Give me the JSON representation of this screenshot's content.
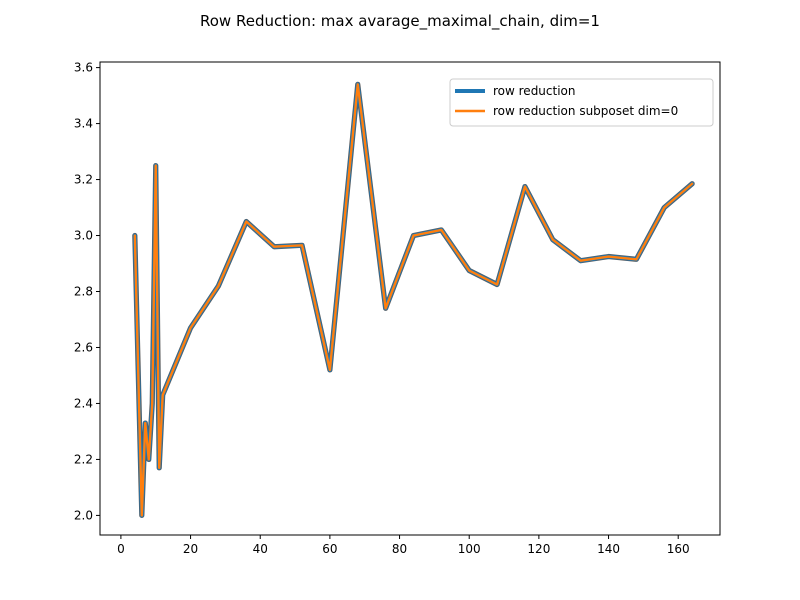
{
  "chart_data": {
    "type": "line",
    "title": "Row Reduction: max avarage_maximal_chain, dim=1",
    "xlabel": "",
    "ylabel": "",
    "xlim": [
      -6,
      172
    ],
    "ylim": [
      1.93,
      3.62
    ],
    "x_ticks": [
      0,
      20,
      40,
      60,
      80,
      100,
      120,
      140,
      160
    ],
    "y_ticks": [
      2.0,
      2.2,
      2.4,
      2.6,
      2.8,
      3.0,
      3.2,
      3.4,
      3.6
    ],
    "x_tick_labels": [
      "0",
      "20",
      "40",
      "60",
      "80",
      "100",
      "120",
      "140",
      "160"
    ],
    "y_tick_labels": [
      "2.0",
      "2.2",
      "2.4",
      "2.6",
      "2.8",
      "3.0",
      "3.2",
      "3.4",
      "3.6"
    ],
    "legend_position": "top-right",
    "grid": false,
    "series": [
      {
        "name": "row reduction",
        "color": "#1f77b4",
        "x": [
          4,
          6,
          7,
          8,
          9,
          10,
          11,
          12,
          20,
          28,
          36,
          44,
          52,
          60,
          68,
          76,
          84,
          92,
          100,
          108,
          116,
          124,
          132,
          140,
          148,
          156,
          164
        ],
        "y": [
          3.0,
          2.0,
          2.33,
          2.2,
          2.4,
          3.25,
          2.17,
          2.43,
          2.67,
          2.82,
          3.05,
          2.96,
          2.965,
          2.52,
          3.54,
          2.74,
          3.0,
          3.02,
          2.875,
          2.825,
          3.175,
          2.985,
          2.91,
          2.925,
          2.915,
          3.1,
          3.185
        ]
      },
      {
        "name": "row reduction subposet dim=0",
        "color": "#ff7f0e",
        "x": [
          4,
          6,
          7,
          8,
          9,
          10,
          11,
          12,
          20,
          28,
          36,
          44,
          52,
          60,
          68,
          76,
          84,
          92,
          100,
          108,
          116,
          124,
          132,
          140,
          148,
          156,
          164
        ],
        "y": [
          3.0,
          2.0,
          2.33,
          2.2,
          2.4,
          3.25,
          2.17,
          2.43,
          2.67,
          2.82,
          3.05,
          2.96,
          2.965,
          2.52,
          3.54,
          2.74,
          3.0,
          3.02,
          2.875,
          2.825,
          3.175,
          2.985,
          2.91,
          2.925,
          2.915,
          3.1,
          3.185
        ]
      }
    ]
  }
}
